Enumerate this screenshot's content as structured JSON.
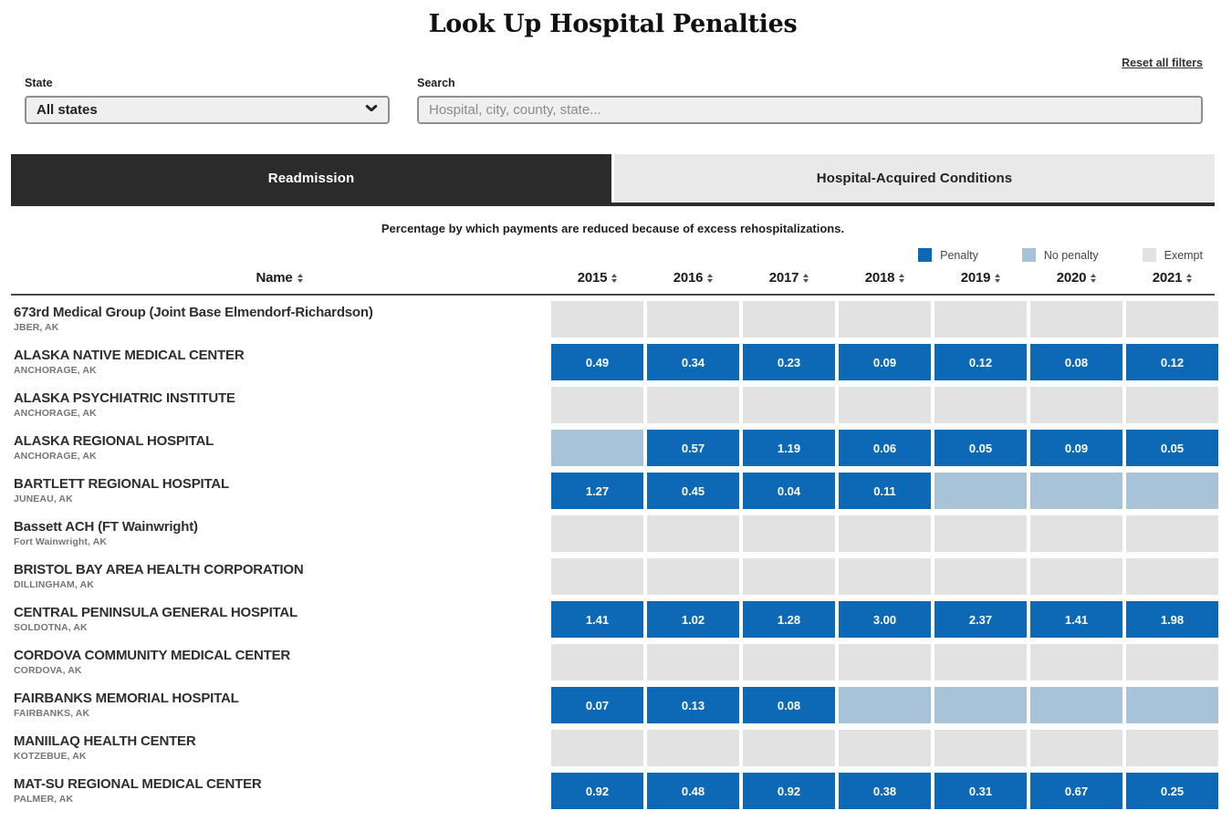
{
  "page": {
    "title": "Look Up Hospital Penalties",
    "reset_link": "Reset all filters"
  },
  "filters": {
    "state_label": "State",
    "state_value": "All states",
    "search_label": "Search",
    "search_placeholder": "Hospital, city, county, state..."
  },
  "tabs": [
    {
      "label": "Readmission",
      "active": true
    },
    {
      "label": "Hospital-Acquired Conditions",
      "active": false
    }
  ],
  "caption": "Percentage by which payments are reduced because of excess rehospitalizations.",
  "legend": [
    {
      "label": "Penalty",
      "color": "#0d69b5"
    },
    {
      "label": "No penalty",
      "color": "#a8c3d8"
    },
    {
      "label": "Exempt",
      "color": "#e2e2e2"
    }
  ],
  "colors": {
    "penalty": "#0d69b5",
    "no_penalty": "#a8c3d8",
    "exempt": "#e2e2e2",
    "active_tab": "#2b2b2b"
  },
  "table": {
    "name_header": "Name",
    "years": [
      "2015",
      "2016",
      "2017",
      "2018",
      "2019",
      "2020",
      "2021"
    ],
    "rows": [
      {
        "name": "673rd Medical Group (Joint Base Elmendorf-Richardson)",
        "location": "JBER, AK",
        "cells": [
          {
            "type": "exempt"
          },
          {
            "type": "exempt"
          },
          {
            "type": "exempt"
          },
          {
            "type": "exempt"
          },
          {
            "type": "exempt"
          },
          {
            "type": "exempt"
          },
          {
            "type": "exempt"
          }
        ]
      },
      {
        "name": "ALASKA NATIVE MEDICAL CENTER",
        "location": "ANCHORAGE, AK",
        "cells": [
          {
            "type": "penalty",
            "value": "0.49"
          },
          {
            "type": "penalty",
            "value": "0.34"
          },
          {
            "type": "penalty",
            "value": "0.23"
          },
          {
            "type": "penalty",
            "value": "0.09"
          },
          {
            "type": "penalty",
            "value": "0.12"
          },
          {
            "type": "penalty",
            "value": "0.08"
          },
          {
            "type": "penalty",
            "value": "0.12"
          }
        ]
      },
      {
        "name": "ALASKA PSYCHIATRIC INSTITUTE",
        "location": "ANCHORAGE, AK",
        "cells": [
          {
            "type": "exempt"
          },
          {
            "type": "exempt"
          },
          {
            "type": "exempt"
          },
          {
            "type": "exempt"
          },
          {
            "type": "exempt"
          },
          {
            "type": "exempt"
          },
          {
            "type": "exempt"
          }
        ]
      },
      {
        "name": "ALASKA REGIONAL HOSPITAL",
        "location": "ANCHORAGE, AK",
        "cells": [
          {
            "type": "none"
          },
          {
            "type": "penalty",
            "value": "0.57"
          },
          {
            "type": "penalty",
            "value": "1.19"
          },
          {
            "type": "penalty",
            "value": "0.06"
          },
          {
            "type": "penalty",
            "value": "0.05"
          },
          {
            "type": "penalty",
            "value": "0.09"
          },
          {
            "type": "penalty",
            "value": "0.05"
          }
        ]
      },
      {
        "name": "BARTLETT REGIONAL HOSPITAL",
        "location": "JUNEAU, AK",
        "cells": [
          {
            "type": "penalty",
            "value": "1.27"
          },
          {
            "type": "penalty",
            "value": "0.45"
          },
          {
            "type": "penalty",
            "value": "0.04"
          },
          {
            "type": "penalty",
            "value": "0.11"
          },
          {
            "type": "none"
          },
          {
            "type": "none"
          },
          {
            "type": "none"
          }
        ]
      },
      {
        "name": "Bassett ACH (FT Wainwright)",
        "location": "Fort Wainwright, AK",
        "cells": [
          {
            "type": "exempt"
          },
          {
            "type": "exempt"
          },
          {
            "type": "exempt"
          },
          {
            "type": "exempt"
          },
          {
            "type": "exempt"
          },
          {
            "type": "exempt"
          },
          {
            "type": "exempt"
          }
        ]
      },
      {
        "name": "BRISTOL BAY AREA HEALTH CORPORATION",
        "location": "DILLINGHAM, AK",
        "cells": [
          {
            "type": "exempt"
          },
          {
            "type": "exempt"
          },
          {
            "type": "exempt"
          },
          {
            "type": "exempt"
          },
          {
            "type": "exempt"
          },
          {
            "type": "exempt"
          },
          {
            "type": "exempt"
          }
        ]
      },
      {
        "name": "CENTRAL PENINSULA GENERAL HOSPITAL",
        "location": "SOLDOTNA, AK",
        "cells": [
          {
            "type": "penalty",
            "value": "1.41"
          },
          {
            "type": "penalty",
            "value": "1.02"
          },
          {
            "type": "penalty",
            "value": "1.28"
          },
          {
            "type": "penalty",
            "value": "3.00"
          },
          {
            "type": "penalty",
            "value": "2.37"
          },
          {
            "type": "penalty",
            "value": "1.41"
          },
          {
            "type": "penalty",
            "value": "1.98"
          }
        ]
      },
      {
        "name": "CORDOVA COMMUNITY MEDICAL CENTER",
        "location": "CORDOVA, AK",
        "cells": [
          {
            "type": "exempt"
          },
          {
            "type": "exempt"
          },
          {
            "type": "exempt"
          },
          {
            "type": "exempt"
          },
          {
            "type": "exempt"
          },
          {
            "type": "exempt"
          },
          {
            "type": "exempt"
          }
        ]
      },
      {
        "name": "FAIRBANKS MEMORIAL HOSPITAL",
        "location": "FAIRBANKS, AK",
        "cells": [
          {
            "type": "penalty",
            "value": "0.07"
          },
          {
            "type": "penalty",
            "value": "0.13"
          },
          {
            "type": "penalty",
            "value": "0.08"
          },
          {
            "type": "none"
          },
          {
            "type": "none"
          },
          {
            "type": "none"
          },
          {
            "type": "none"
          }
        ]
      },
      {
        "name": "MANIILAQ HEALTH CENTER",
        "location": "KOTZEBUE, AK",
        "cells": [
          {
            "type": "exempt"
          },
          {
            "type": "exempt"
          },
          {
            "type": "exempt"
          },
          {
            "type": "exempt"
          },
          {
            "type": "exempt"
          },
          {
            "type": "exempt"
          },
          {
            "type": "exempt"
          }
        ]
      },
      {
        "name": "MAT-SU REGIONAL MEDICAL CENTER",
        "location": "PALMER, AK",
        "cells": [
          {
            "type": "penalty",
            "value": "0.92"
          },
          {
            "type": "penalty",
            "value": "0.48"
          },
          {
            "type": "penalty",
            "value": "0.92"
          },
          {
            "type": "penalty",
            "value": "0.38"
          },
          {
            "type": "penalty",
            "value": "0.31"
          },
          {
            "type": "penalty",
            "value": "0.67"
          },
          {
            "type": "penalty",
            "value": "0.25"
          }
        ]
      }
    ]
  }
}
